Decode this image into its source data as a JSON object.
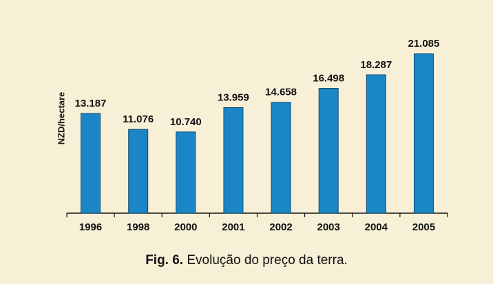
{
  "chart_data": {
    "type": "bar",
    "figure_label": "Fig. 6.",
    "title": "Evolução do preço da terra.",
    "ylabel": "NZD/hectare",
    "categories": [
      "1996",
      "1998",
      "2000",
      "2001",
      "2002",
      "2003",
      "2004",
      "2005"
    ],
    "values": [
      13187,
      11076,
      10740,
      13959,
      14658,
      16498,
      18287,
      21085
    ],
    "value_labels": [
      "13.187",
      "11.076",
      "10.740",
      "13.959",
      "14.658",
      "16.498",
      "18.287",
      "21.085"
    ],
    "color": "#1a86c6",
    "ylim": [
      0,
      25000
    ]
  }
}
